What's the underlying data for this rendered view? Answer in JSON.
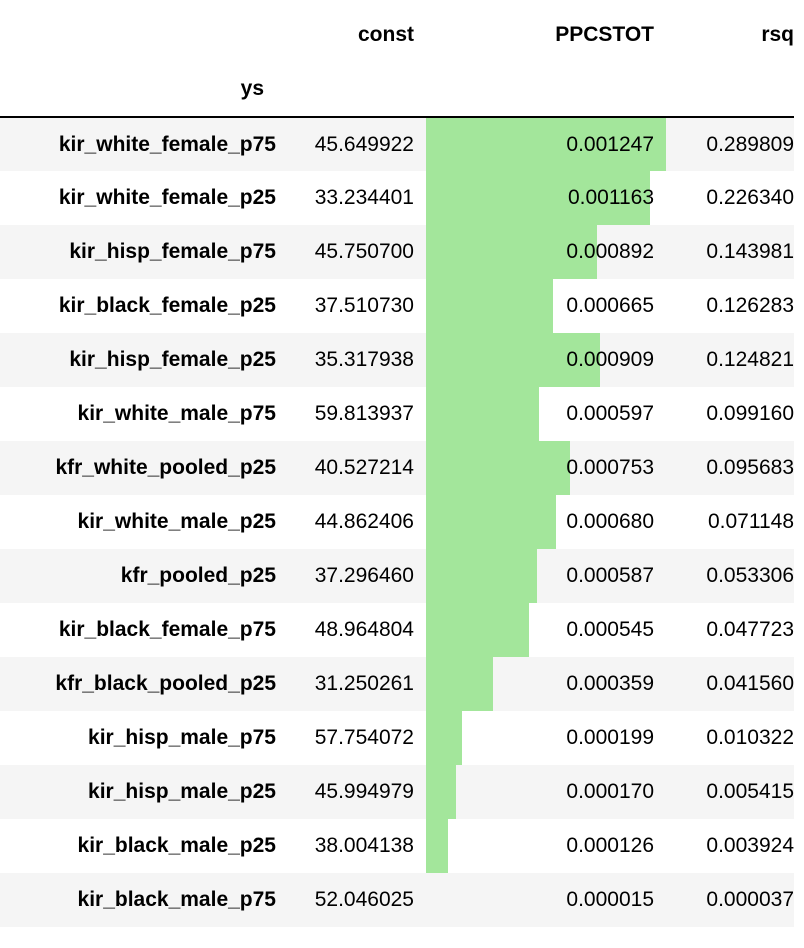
{
  "table": {
    "columns": [
      "const",
      "PPCSTOT",
      "rsq"
    ],
    "index_name": "ys",
    "bar_color": "#a3e69b",
    "stripe_color": "#f5f5f5",
    "rows": [
      {
        "ys": "kir_white_female_p75",
        "const": "45.649922",
        "PPCSTOT": "0.001247",
        "rsq": "0.289809",
        "ppc_value": 0.001247
      },
      {
        "ys": "kir_white_female_p25",
        "const": "33.234401",
        "PPCSTOT": "0.001163",
        "rsq": "0.226340",
        "ppc_value": 0.001163
      },
      {
        "ys": "kir_hisp_female_p75",
        "const": "45.750700",
        "PPCSTOT": "0.000892",
        "rsq": "0.143981",
        "ppc_value": 0.000892
      },
      {
        "ys": "kir_black_female_p25",
        "const": "37.510730",
        "PPCSTOT": "0.000665",
        "rsq": "0.126283",
        "ppc_value": 0.000665
      },
      {
        "ys": "kir_hisp_female_p25",
        "const": "35.317938",
        "PPCSTOT": "0.000909",
        "rsq": "0.124821",
        "ppc_value": 0.000909
      },
      {
        "ys": "kir_white_male_p75",
        "const": "59.813937",
        "PPCSTOT": "0.000597",
        "rsq": "0.099160",
        "ppc_value": 0.000597
      },
      {
        "ys": "kfr_white_pooled_p25",
        "const": "40.527214",
        "PPCSTOT": "0.000753",
        "rsq": "0.095683",
        "ppc_value": 0.000753
      },
      {
        "ys": "kir_white_male_p25",
        "const": "44.862406",
        "PPCSTOT": "0.000680",
        "rsq": "0.071148",
        "ppc_value": 0.00068
      },
      {
        "ys": "kfr_pooled_p25",
        "const": "37.296460",
        "PPCSTOT": "0.000587",
        "rsq": "0.053306",
        "ppc_value": 0.000587
      },
      {
        "ys": "kir_black_female_p75",
        "const": "48.964804",
        "PPCSTOT": "0.000545",
        "rsq": "0.047723",
        "ppc_value": 0.000545
      },
      {
        "ys": "kfr_black_pooled_p25",
        "const": "31.250261",
        "PPCSTOT": "0.000359",
        "rsq": "0.041560",
        "ppc_value": 0.000359
      },
      {
        "ys": "kir_hisp_male_p75",
        "const": "57.754072",
        "PPCSTOT": "0.000199",
        "rsq": "0.010322",
        "ppc_value": 0.000199
      },
      {
        "ys": "kir_hisp_male_p25",
        "const": "45.994979",
        "PPCSTOT": "0.000170",
        "rsq": "0.005415",
        "ppc_value": 0.00017
      },
      {
        "ys": "kir_black_male_p25",
        "const": "38.004138",
        "PPCSTOT": "0.000126",
        "rsq": "0.003924",
        "ppc_value": 0.000126
      },
      {
        "ys": "kir_black_male_p75",
        "const": "52.046025",
        "PPCSTOT": "0.000015",
        "rsq": "0.000037",
        "ppc_value": 1.5e-05
      }
    ]
  }
}
